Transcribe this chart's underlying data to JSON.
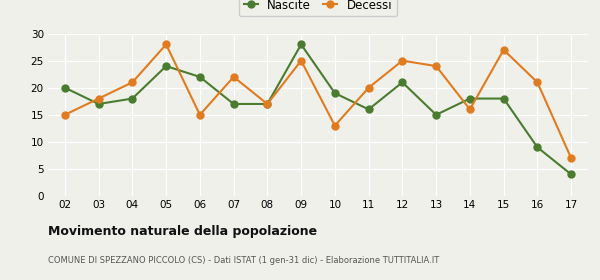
{
  "years": [
    "02",
    "03",
    "04",
    "05",
    "06",
    "07",
    "08",
    "09",
    "10",
    "11",
    "12",
    "13",
    "14",
    "15",
    "16",
    "17"
  ],
  "nascite": [
    20,
    17,
    18,
    24,
    22,
    17,
    17,
    28,
    19,
    16,
    21,
    15,
    18,
    18,
    9,
    4
  ],
  "decessi": [
    15,
    18,
    21,
    28,
    15,
    22,
    17,
    25,
    13,
    20,
    25,
    24,
    16,
    27,
    21,
    7
  ],
  "nascite_color": "#4a7c2f",
  "decessi_color": "#e07b20",
  "title": "Movimento naturale della popolazione",
  "subtitle": "COMUNE DI SPEZZANO PICCOLO (CS) - Dati ISTAT (1 gen-31 dic) - Elaborazione TUTTITALIA.IT",
  "ylim": [
    0,
    30
  ],
  "yticks": [
    0,
    5,
    10,
    15,
    20,
    25,
    30
  ],
  "legend_nascite": "Nascite",
  "legend_decessi": "Decessi",
  "bg_color": "#f0f0eb",
  "grid_color": "#ffffff",
  "marker_size": 5,
  "linewidth": 1.5
}
